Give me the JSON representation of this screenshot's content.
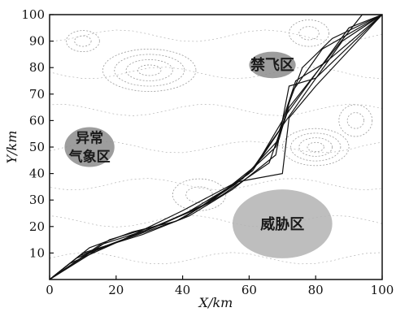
{
  "chart_data": {
    "type": "line",
    "title": "",
    "xlabel": "X/km",
    "ylabel": "Y/km",
    "xlim": [
      0,
      100
    ],
    "ylim": [
      0,
      100
    ],
    "x_ticks": [
      0,
      20,
      40,
      60,
      80,
      100
    ],
    "y_ticks": [
      10,
      20,
      30,
      40,
      50,
      60,
      70,
      80,
      90,
      100
    ],
    "x_tick_labels": [
      "0",
      "20",
      "40",
      "60",
      "80",
      "100"
    ],
    "y_tick_labels": [
      "10",
      "20",
      "30",
      "40",
      "50",
      "60",
      "70",
      "80",
      "90",
      "100"
    ],
    "grid": false,
    "regions": [
      {
        "name": "禁飞区",
        "lines": [
          "禁飞区"
        ],
        "center": [
          67,
          81
        ],
        "radius": [
          7,
          5
        ],
        "color": "#8c8c8c"
      },
      {
        "name": "异常气象区",
        "lines": [
          "异常",
          "气象区"
        ],
        "center": [
          12,
          50
        ],
        "radius": [
          7.5,
          7.5
        ],
        "color": "#8c8c8c"
      },
      {
        "name": "威胁区",
        "lines": [
          "威胁区"
        ],
        "center": [
          70,
          21
        ],
        "radius": [
          15,
          13
        ],
        "color": "#b3b3b3"
      }
    ],
    "series": [
      {
        "x": [
          0,
          10,
          28,
          42,
          55,
          68,
          72,
          80,
          100
        ],
        "y": [
          0,
          10,
          17,
          24,
          34,
          47,
          73,
          76,
          100
        ]
      },
      {
        "x": [
          0,
          6,
          22,
          40,
          58,
          69,
          73,
          82,
          100
        ],
        "y": [
          0,
          6,
          15,
          26,
          38,
          53,
          71,
          87,
          100
        ]
      },
      {
        "x": [
          0,
          15,
          30,
          45,
          60,
          70,
          75,
          88,
          100
        ],
        "y": [
          0,
          13,
          19,
          27,
          40,
          58,
          67,
          90,
          100
        ]
      },
      {
        "x": [
          0,
          12,
          25,
          38,
          52,
          66,
          71,
          90,
          100
        ],
        "y": [
          0,
          12,
          18,
          22,
          32,
          44,
          62,
          95,
          100
        ]
      },
      {
        "x": [
          0,
          18,
          34,
          48,
          62,
          70,
          76,
          85,
          100
        ],
        "y": [
          0,
          15,
          21,
          29,
          43,
          60,
          80,
          91,
          100
        ]
      },
      {
        "x": [
          0,
          8,
          20,
          40,
          56,
          68,
          72,
          94,
          100
        ],
        "y": [
          0,
          8,
          14,
          23,
          36,
          50,
          65,
          100,
          100
        ]
      },
      {
        "x": [
          0,
          14,
          32,
          46,
          61,
          69,
          74,
          83,
          100
        ],
        "y": [
          0,
          11,
          20,
          28,
          41,
          56,
          75,
          82,
          100
        ]
      },
      {
        "x": [
          0,
          9,
          24,
          41,
          57,
          70,
          72,
          80,
          100
        ],
        "y": [
          0,
          9,
          16,
          25,
          37,
          40,
          61,
          73,
          100
        ]
      }
    ]
  }
}
